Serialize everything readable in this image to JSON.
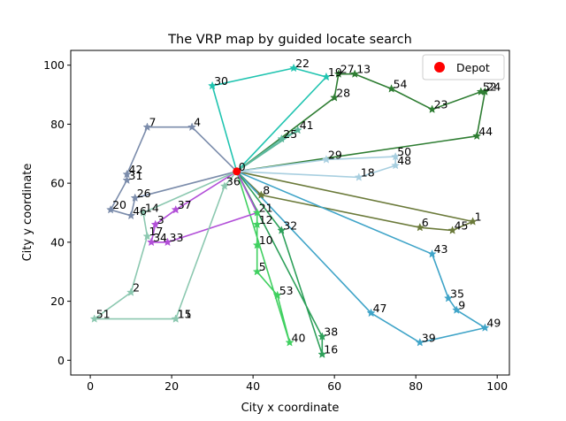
{
  "chart_data": {
    "type": "scatter",
    "title": "The VRP map by guided locate search",
    "xlabel": "City x coordinate",
    "ylabel": "City y coordinate",
    "xlim": [
      -4.8,
      103
    ],
    "ylim": [
      -5,
      105
    ],
    "xticks": [
      0,
      20,
      40,
      60,
      80,
      100
    ],
    "yticks": [
      0,
      20,
      40,
      60,
      80,
      100
    ],
    "grid": false,
    "legend": {
      "position": "top-right",
      "entries": [
        {
          "label": "Depot",
          "color": "#ff0000",
          "marker": "circle"
        }
      ]
    },
    "depot": {
      "id": "0",
      "x": 36,
      "y": 64
    },
    "cities": [
      {
        "id": "1",
        "x": 94,
        "y": 47
      },
      {
        "id": "2",
        "x": 10,
        "y": 23
      },
      {
        "id": "3",
        "x": 16,
        "y": 46
      },
      {
        "id": "4",
        "x": 25,
        "y": 79
      },
      {
        "id": "5",
        "x": 41,
        "y": 30
      },
      {
        "id": "6",
        "x": 81,
        "y": 45
      },
      {
        "id": "7",
        "x": 14,
        "y": 79
      },
      {
        "id": "8",
        "x": 42,
        "y": 56
      },
      {
        "id": "9",
        "x": 90,
        "y": 17
      },
      {
        "id": "10",
        "x": 41,
        "y": 39
      },
      {
        "id": "11",
        "x": 21,
        "y": 14
      },
      {
        "id": "12",
        "x": 41,
        "y": 46
      },
      {
        "id": "13",
        "x": 65,
        "y": 97
      },
      {
        "id": "14",
        "x": 13,
        "y": 50
      },
      {
        "id": "15",
        "x": 21,
        "y": 14
      },
      {
        "id": "16",
        "x": 57,
        "y": 2
      },
      {
        "id": "17",
        "x": 14,
        "y": 42
      },
      {
        "id": "18",
        "x": 66,
        "y": 62
      },
      {
        "id": "19",
        "x": 58,
        "y": 96
      },
      {
        "id": "20",
        "x": 5,
        "y": 51
      },
      {
        "id": "21",
        "x": 41,
        "y": 50
      },
      {
        "id": "22",
        "x": 50,
        "y": 99
      },
      {
        "id": "23",
        "x": 84,
        "y": 85
      },
      {
        "id": "24",
        "x": 97,
        "y": 91
      },
      {
        "id": "25",
        "x": 47,
        "y": 75
      },
      {
        "id": "26",
        "x": 11,
        "y": 55
      },
      {
        "id": "27",
        "x": 61,
        "y": 97
      },
      {
        "id": "28",
        "x": 60,
        "y": 89
      },
      {
        "id": "29",
        "x": 58,
        "y": 68
      },
      {
        "id": "30",
        "x": 30,
        "y": 93
      },
      {
        "id": "31",
        "x": 9,
        "y": 61
      },
      {
        "id": "32",
        "x": 47,
        "y": 44
      },
      {
        "id": "33",
        "x": 19,
        "y": 40
      },
      {
        "id": "34",
        "x": 15,
        "y": 40
      },
      {
        "id": "35",
        "x": 88,
        "y": 21
      },
      {
        "id": "36",
        "x": 33,
        "y": 59
      },
      {
        "id": "37",
        "x": 21,
        "y": 51
      },
      {
        "id": "38",
        "x": 57,
        "y": 8
      },
      {
        "id": "39",
        "x": 81,
        "y": 6
      },
      {
        "id": "40",
        "x": 49,
        "y": 6
      },
      {
        "id": "41",
        "x": 51,
        "y": 78
      },
      {
        "id": "42",
        "x": 9,
        "y": 63
      },
      {
        "id": "43",
        "x": 84,
        "y": 36
      },
      {
        "id": "44",
        "x": 95,
        "y": 76
      },
      {
        "id": "45",
        "x": 89,
        "y": 44
      },
      {
        "id": "46",
        "x": 10,
        "y": 49
      },
      {
        "id": "47",
        "x": 69,
        "y": 16
      },
      {
        "id": "48",
        "x": 75,
        "y": 66
      },
      {
        "id": "49",
        "x": 97,
        "y": 11
      },
      {
        "id": "50",
        "x": 75,
        "y": 69
      },
      {
        "id": "51",
        "x": 1,
        "y": 14
      },
      {
        "id": "52",
        "x": 96,
        "y": 91
      },
      {
        "id": "53",
        "x": 46,
        "y": 22
      },
      {
        "id": "54",
        "x": 74,
        "y": 92
      }
    ],
    "routes": [
      {
        "color": "#2e7d32",
        "stops": [
          "0",
          "28",
          "27",
          "13",
          "54",
          "23",
          "52",
          "24",
          "44",
          "0"
        ]
      },
      {
        "color": "#20c4b0",
        "stops": [
          "0",
          "30",
          "22",
          "19",
          "0"
        ]
      },
      {
        "color": "#7b8cab",
        "stops": [
          "0",
          "4",
          "7",
          "42",
          "31",
          "20",
          "46",
          "26",
          "0"
        ]
      },
      {
        "color": "#6b7a3a",
        "stops": [
          "0",
          "1",
          "45",
          "6",
          "8",
          "0"
        ]
      },
      {
        "color": "#3fa4c8",
        "stops": [
          "0",
          "43",
          "35",
          "9",
          "49",
          "39",
          "47",
          "0"
        ]
      },
      {
        "color": "#2ea05a",
        "stops": [
          "0",
          "32",
          "16",
          "38",
          "0"
        ]
      },
      {
        "color": "#40d060",
        "stops": [
          "0",
          "21",
          "12",
          "10",
          "5",
          "53",
          "40",
          "0"
        ]
      },
      {
        "color": "#b24fd8",
        "stops": [
          "0",
          "37",
          "3",
          "34",
          "33",
          "21",
          "0"
        ]
      },
      {
        "color": "#8cc8b0",
        "stops": [
          "0",
          "36",
          "15",
          "11",
          "51",
          "2",
          "17",
          "14",
          "0"
        ]
      },
      {
        "color": "#a8cfe0",
        "stops": [
          "0",
          "29",
          "50",
          "48",
          "18",
          "0"
        ]
      },
      {
        "color": "#5cb89c",
        "stops": [
          "0",
          "25",
          "41",
          "0"
        ]
      }
    ]
  }
}
